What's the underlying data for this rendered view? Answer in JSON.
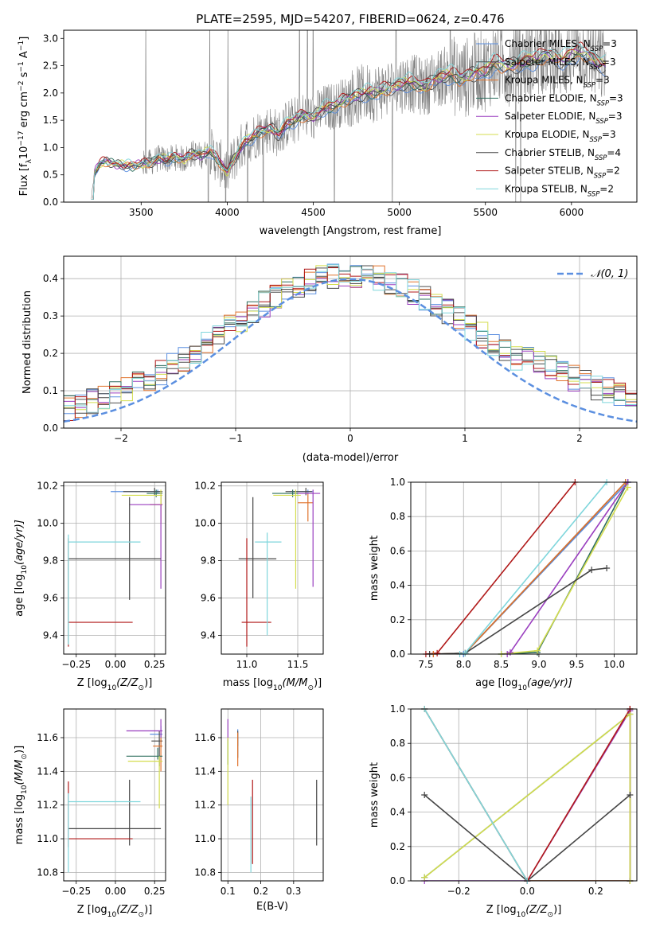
{
  "figure": {
    "title": "PLATE=2595, MJD=54207, FIBERID=0624, z=0.476"
  },
  "models": [
    {
      "name": "Chabrier MILES",
      "nssp": "3",
      "color": "#5b8fe0"
    },
    {
      "name": "Salpeter MILES",
      "nssp": "3",
      "color": "#4d4d4d"
    },
    {
      "name": "Kroupa MILES",
      "nssp": "3",
      "color": "#e0732d"
    },
    {
      "name": "Chabrier ELODIE",
      "nssp": "3",
      "color": "#2f6f5f"
    },
    {
      "name": "Salpeter ELODIE",
      "nssp": "3",
      "color": "#9a3fbf"
    },
    {
      "name": "Kroupa ELODIE",
      "nssp": "3",
      "color": "#d4dd4f"
    },
    {
      "name": "Chabrier STELIB",
      "nssp": "4",
      "color": "#444444"
    },
    {
      "name": "Salpeter STELIB",
      "nssp": "2",
      "color": "#b01818"
    },
    {
      "name": "Kroupa STELIB",
      "nssp": "2",
      "color": "#7fd6dc"
    }
  ],
  "chart_data": [
    {
      "id": "spectrum",
      "type": "line",
      "xlabel": "wavelength [Angstrom, rest frame]",
      "ylabel_main": "Flux [f",
      "ylabel_sub": "λ",
      "ylabel_mid": "10",
      "ylabel_exp": "−17",
      "ylabel_tail": " erg cm",
      "ylabel_exp2": "−2",
      "ylabel_tail2": " s",
      "ylabel_exp3": "−1",
      "ylabel_tail3": " A",
      "ylabel_exp4": "−1",
      "ylabel_end": "]",
      "xlim": [
        3050,
        6380
      ],
      "ylim": [
        0,
        3.15
      ],
      "xticks": [
        3500,
        4000,
        4500,
        5000,
        5500,
        6000
      ],
      "yticks": [
        0.0,
        0.5,
        1.0,
        1.5,
        2.0,
        2.5,
        3.0
      ],
      "data_color": "#7f7f7f",
      "data_x_range": [
        3210,
        6200
      ],
      "model_x": [
        3210,
        3230,
        3260,
        3300,
        3350,
        3400,
        3450,
        3500,
        3550,
        3600,
        3650,
        3700,
        3750,
        3800,
        3850,
        3900,
        3950,
        4000,
        4050,
        4100,
        4150,
        4200,
        4250,
        4300,
        4350,
        4400,
        4450,
        4500,
        4550,
        4600,
        4650,
        4700,
        4750,
        4800,
        4850,
        4900,
        4950,
        5000,
        5050,
        5100,
        5150,
        5200,
        5250,
        5300,
        5350,
        5400,
        5450,
        5500,
        5550,
        5600,
        5650,
        5700,
        5750,
        5800,
        5850,
        5900,
        5950,
        6000,
        6050,
        6100,
        6150,
        6200
      ],
      "model_y": [
        0.05,
        0.55,
        0.7,
        0.75,
        0.7,
        0.68,
        0.66,
        0.7,
        0.72,
        0.8,
        0.78,
        0.82,
        0.78,
        0.9,
        0.85,
        0.95,
        0.75,
        0.55,
        0.85,
        1.1,
        1.2,
        1.3,
        1.35,
        1.25,
        1.45,
        1.5,
        1.6,
        1.55,
        1.7,
        1.75,
        1.8,
        1.9,
        1.95,
        2.0,
        2.0,
        2.05,
        2.1,
        2.15,
        2.2,
        2.15,
        2.1,
        2.25,
        2.3,
        2.35,
        2.25,
        2.3,
        2.4,
        2.4,
        2.55,
        2.5,
        2.5,
        2.55,
        2.6,
        2.6,
        2.7,
        2.65,
        2.6,
        2.7,
        2.75,
        2.7,
        2.55,
        2.5
      ]
    },
    {
      "id": "residuals",
      "type": "histogram",
      "xlabel": "(data-model)/error",
      "ylabel": "Normed distribution",
      "xlim": [
        -2.5,
        2.5
      ],
      "ylim": [
        0,
        0.46
      ],
      "xticks": [
        -2,
        -1,
        0,
        1,
        2
      ],
      "yticks": [
        0.0,
        0.1,
        0.2,
        0.3,
        0.4
      ],
      "bin_width": 0.1,
      "legend": "𝒩(0, 1)",
      "normal_color": "#5b8fe0"
    },
    {
      "id": "age-vs-z",
      "type": "errorbar",
      "xlabel": "Z [log",
      "xlabel_sub": "10",
      "xlabel_tail": "(Z/Z",
      "xlabel_sun": "⊙",
      "xlabel_end": ")]",
      "ylabel": "age  [log",
      "ylabel_sub": "10",
      "ylabel_tail": "(age/yr)]",
      "xlim": [
        -0.33,
        0.32
      ],
      "ylim": [
        9.3,
        10.22
      ],
      "xticks": [
        -0.25,
        0.0,
        0.25
      ],
      "xticklabels": [
        "−0.25",
        "0.00",
        "0.25"
      ],
      "yticks": [
        9.4,
        9.6,
        9.8,
        10.0,
        10.2
      ],
      "points": [
        {
          "model": 0,
          "x": 0.27,
          "xerr": [
            0.3,
            0.03
          ],
          "y": 10.17,
          "yerr": [
            0.01,
            0.01
          ]
        },
        {
          "model": 1,
          "x": 0.25,
          "xerr": [
            0.2,
            0.05
          ],
          "y": 10.17,
          "yerr": [
            0.02,
            0.02
          ]
        },
        {
          "model": 2,
          "x": 0.29,
          "xerr": [
            0.07,
            0.01
          ],
          "y": 10.1,
          "yerr": [
            0.1,
            0.05
          ]
        },
        {
          "model": 3,
          "x": 0.26,
          "xerr": [
            0.06,
            0.04
          ],
          "y": 10.16,
          "yerr": [
            0.02,
            0.02
          ]
        },
        {
          "model": 4,
          "x": 0.29,
          "xerr": [
            0.2,
            0.01
          ],
          "y": 10.1,
          "yerr": [
            0.45,
            0.07
          ]
        },
        {
          "model": 5,
          "x": 0.29,
          "xerr": [
            0.25,
            0.01
          ],
          "y": 10.15,
          "yerr": [
            0.05,
            0.03
          ]
        },
        {
          "model": 6,
          "x": 0.09,
          "xerr": [
            0.39,
            0.2
          ],
          "y": 9.81,
          "yerr": [
            0.22,
            0.33
          ]
        },
        {
          "model": 7,
          "x": -0.3,
          "xerr": [
            0.0,
            0.41
          ],
          "y": 9.47,
          "yerr": [
            0.13,
            0.45
          ]
        },
        {
          "model": 8,
          "x": -0.3,
          "xerr": [
            0.0,
            0.46
          ],
          "y": 9.9,
          "yerr": [
            0.55,
            0.04
          ]
        }
      ]
    },
    {
      "id": "age-vs-mass",
      "type": "errorbar",
      "xlabel": "mass [log",
      "xlabel_sub": "10",
      "xlabel_tail": "(M/M",
      "xlabel_sun": "⊙",
      "xlabel_end": ")]",
      "xlim": [
        10.75,
        11.75
      ],
      "ylim": [
        9.3,
        10.22
      ],
      "xticks": [
        11.0,
        11.5
      ],
      "xticklabels": [
        "11.0",
        "11.5"
      ],
      "yticks": [
        9.4,
        9.6,
        9.8,
        10.0,
        10.2
      ],
      "points": [
        {
          "model": 0,
          "x": 11.6,
          "xerr": [
            0.18,
            0.05
          ],
          "y": 10.17,
          "yerr": [
            0.01,
            0.01
          ]
        },
        {
          "model": 1,
          "x": 11.58,
          "xerr": [
            0.2,
            0.06
          ],
          "y": 10.17,
          "yerr": [
            0.02,
            0.02
          ]
        },
        {
          "model": 2,
          "x": 11.6,
          "xerr": [
            0.1,
            0.05
          ],
          "y": 10.11,
          "yerr": [
            0.1,
            0.05
          ]
        },
        {
          "model": 3,
          "x": 11.45,
          "xerr": [
            0.2,
            0.05
          ],
          "y": 10.16,
          "yerr": [
            0.02,
            0.02
          ]
        },
        {
          "model": 4,
          "x": 11.65,
          "xerr": [
            0.15,
            0.07
          ],
          "y": 10.16,
          "yerr": [
            0.5,
            0.02
          ]
        },
        {
          "model": 5,
          "x": 11.48,
          "xerr": [
            0.22,
            0.05
          ],
          "y": 10.15,
          "yerr": [
            0.5,
            0.03
          ]
        },
        {
          "model": 6,
          "x": 11.06,
          "xerr": [
            0.14,
            0.23
          ],
          "y": 9.81,
          "yerr": [
            0.21,
            0.33
          ]
        },
        {
          "model": 7,
          "x": 11.0,
          "xerr": [
            0.05,
            0.24
          ],
          "y": 9.47,
          "yerr": [
            0.13,
            0.45
          ]
        },
        {
          "model": 8,
          "x": 11.2,
          "xerr": [
            0.12,
            0.14
          ],
          "y": 9.9,
          "yerr": [
            0.5,
            0.05
          ]
        }
      ]
    },
    {
      "id": "age-mass-weight",
      "type": "line",
      "xlabel": "age  [log",
      "xlabel_sub": "10",
      "xlabel_tail": "(age/yr)]",
      "ylabel": "mass weight",
      "xlim": [
        7.3,
        10.3
      ],
      "ylim": [
        0,
        1.0
      ],
      "xticks": [
        7.5,
        8.0,
        8.5,
        9.0,
        9.5,
        10.0
      ],
      "yticks": [
        0.0,
        0.2,
        0.4,
        0.6,
        0.8,
        1.0
      ],
      "series": [
        {
          "model": 0,
          "x": [
            8.0,
            8.02,
            10.18
          ],
          "y": [
            0.0,
            0.005,
            1.0
          ]
        },
        {
          "model": 1,
          "x": [
            7.6,
            8.02,
            10.15
          ],
          "y": [
            0.0,
            0.005,
            1.0
          ]
        },
        {
          "model": 2,
          "x": [
            7.6,
            8.02,
            10.15
          ],
          "y": [
            0.0,
            0.005,
            1.0
          ]
        },
        {
          "model": 3,
          "x": [
            8.5,
            8.98,
            10.18
          ],
          "y": [
            0.0,
            0.01,
            1.0
          ]
        },
        {
          "model": 4,
          "x": [
            8.58,
            8.62,
            10.18
          ],
          "y": [
            0.0,
            0.01,
            1.0
          ]
        },
        {
          "model": 5,
          "x": [
            8.5,
            8.98,
            10.18
          ],
          "y": [
            0.0,
            0.02,
            0.97
          ]
        },
        {
          "model": 6,
          "x": [
            7.55,
            8.02,
            9.7,
            9.9
          ],
          "y": [
            0.0,
            0.005,
            0.49,
            0.5
          ]
        },
        {
          "model": 7,
          "x": [
            7.5,
            7.65,
            9.48
          ],
          "y": [
            0.0,
            0.005,
            1.0
          ]
        },
        {
          "model": 8,
          "x": [
            7.95,
            8.02,
            9.9
          ],
          "y": [
            0.0,
            0.005,
            1.0
          ]
        }
      ]
    },
    {
      "id": "mass-vs-z",
      "type": "errorbar",
      "xlabel": "Z [log",
      "xlabel_sub": "10",
      "xlabel_tail": "(Z/Z",
      "xlabel_sun": "⊙",
      "xlabel_end": ")]",
      "ylabel": "mass [log",
      "ylabel_sub": "10",
      "ylabel_tail": "(M/M",
      "ylabel_sun": "⊙",
      "ylabel_end": ")]",
      "xlim": [
        -0.33,
        0.32
      ],
      "ylim": [
        10.75,
        11.77
      ],
      "xticks": [
        -0.25,
        0.0,
        0.25
      ],
      "xticklabels": [
        "−0.25",
        "0.00",
        "0.25"
      ],
      "yticks": [
        10.8,
        11.0,
        11.2,
        11.4,
        11.6
      ],
      "points": [
        {
          "model": 0,
          "x": 0.29,
          "xerr": [
            0.07,
            0.01
          ],
          "y": 11.62,
          "yerr": [
            0.08,
            0.05
          ]
        },
        {
          "model": 1,
          "x": 0.28,
          "xerr": [
            0.05,
            0.02
          ],
          "y": 11.58,
          "yerr": [
            0.15,
            0.06
          ]
        },
        {
          "model": 2,
          "x": 0.29,
          "xerr": [
            0.05,
            0.01
          ],
          "y": 11.55,
          "yerr": [
            0.15,
            0.08
          ]
        },
        {
          "model": 3,
          "x": 0.27,
          "xerr": [
            0.2,
            0.03
          ],
          "y": 11.49,
          "yerr": [
            0.02,
            0.05
          ]
        },
        {
          "model": 4,
          "x": 0.29,
          "xerr": [
            0.22,
            0.01
          ],
          "y": 11.64,
          "yerr": [
            0.04,
            0.07
          ]
        },
        {
          "model": 5,
          "x": 0.28,
          "xerr": [
            0.2,
            0.02
          ],
          "y": 11.46,
          "yerr": [
            0.28,
            0.03
          ]
        },
        {
          "model": 6,
          "x": 0.09,
          "xerr": [
            0.39,
            0.2
          ],
          "y": 11.06,
          "yerr": [
            0.1,
            0.29
          ]
        },
        {
          "model": 7,
          "x": -0.3,
          "xerr": [
            0.0,
            0.41
          ],
          "y": 11.0,
          "yerr": [
            0.05,
            0.34
          ]
        },
        {
          "model": 8,
          "x": -0.3,
          "xerr": [
            0.0,
            0.46
          ],
          "y": 11.22,
          "yerr": [
            0.42,
            0.05
          ]
        }
      ]
    },
    {
      "id": "mass-vs-ebv",
      "type": "errorbar",
      "xlabel": "E(B-V)",
      "xlim": [
        0.08,
        0.39
      ],
      "ylim": [
        10.75,
        11.77
      ],
      "xticks": [
        0.1,
        0.2,
        0.3
      ],
      "xticklabels": [
        "0.1",
        "0.2",
        "0.3"
      ],
      "yticks": [
        10.8,
        11.0,
        11.2,
        11.4,
        11.6
      ],
      "points": [
        {
          "model": 0,
          "x": 0.13,
          "xerr": [
            0,
            0
          ],
          "y": 11.6,
          "yerr": [
            0.05,
            0.05
          ]
        },
        {
          "model": 1,
          "x": 0.13,
          "xerr": [
            0,
            0
          ],
          "y": 11.58,
          "yerr": [
            0.1,
            0.06
          ]
        },
        {
          "model": 2,
          "x": 0.13,
          "xerr": [
            0,
            0
          ],
          "y": 11.55,
          "yerr": [
            0.12,
            0.08
          ]
        },
        {
          "model": 3,
          "x": 0.1,
          "xerr": [
            0,
            0
          ],
          "y": 11.49,
          "yerr": [
            0.05,
            0.1
          ]
        },
        {
          "model": 4,
          "x": 0.1,
          "xerr": [
            0,
            0
          ],
          "y": 11.64,
          "yerr": [
            0.06,
            0.07
          ]
        },
        {
          "model": 5,
          "x": 0.1,
          "xerr": [
            0,
            0
          ],
          "y": 11.4,
          "yerr": [
            0.2,
            0.2
          ]
        },
        {
          "model": 6,
          "x": 0.37,
          "xerr": [
            0,
            0
          ],
          "y": 11.15,
          "yerr": [
            0.19,
            0.2
          ]
        },
        {
          "model": 7,
          "x": 0.175,
          "xerr": [
            0,
            0
          ],
          "y": 11.1,
          "yerr": [
            0.25,
            0.25
          ]
        },
        {
          "model": 8,
          "x": 0.17,
          "xerr": [
            0,
            0
          ],
          "y": 11.05,
          "yerr": [
            0.25,
            0.2
          ]
        }
      ]
    },
    {
      "id": "z-mass-weight",
      "type": "line",
      "xlabel": "Z [log",
      "xlabel_sub": "10",
      "xlabel_tail": "(Z/Z",
      "xlabel_sun": "⊙",
      "xlabel_end": ")]",
      "ylabel": "mass weight",
      "xlim": [
        -0.34,
        0.32
      ],
      "ylim": [
        0,
        1.0
      ],
      "xticks": [
        -0.2,
        0.0,
        0.2
      ],
      "xticklabels": [
        "−0.2",
        "0.0",
        "0.2"
      ],
      "yticks": [
        0.0,
        0.2,
        0.4,
        0.6,
        0.8,
        1.0
      ],
      "series": [
        {
          "model": 0,
          "x": [
            -0.3,
            0.0,
            0.3,
            0.3
          ],
          "y": [
            1.0,
            0.0,
            0.0,
            1.0
          ]
        },
        {
          "model": 1,
          "x": [
            -0.3,
            0.0,
            0.3,
            0.3
          ],
          "y": [
            1.0,
            0.0,
            0.0,
            1.0
          ]
        },
        {
          "model": 2,
          "x": [
            -0.3,
            0.0,
            0.3,
            0.3
          ],
          "y": [
            1.0,
            0.0,
            0.0,
            1.0
          ]
        },
        {
          "model": 3,
          "x": [
            -0.3,
            0.3,
            0.3
          ],
          "y": [
            0.02,
            0.97,
            0.0
          ]
        },
        {
          "model": 4,
          "x": [
            -0.3,
            0.0,
            0.3,
            0.3
          ],
          "y": [
            0.0,
            0.0,
            0.99,
            0.0
          ]
        },
        {
          "model": 5,
          "x": [
            -0.3,
            0.3,
            0.3
          ],
          "y": [
            0.02,
            0.97,
            0.0
          ]
        },
        {
          "model": 6,
          "x": [
            -0.3,
            0.0,
            0.3
          ],
          "y": [
            0.5,
            0.0,
            0.5
          ]
        },
        {
          "model": 7,
          "x": [
            0.0,
            0.3
          ],
          "y": [
            0.0,
            1.0
          ]
        },
        {
          "model": 8,
          "x": [
            -0.3,
            0.0
          ],
          "y": [
            1.0,
            0.0
          ]
        }
      ]
    }
  ]
}
